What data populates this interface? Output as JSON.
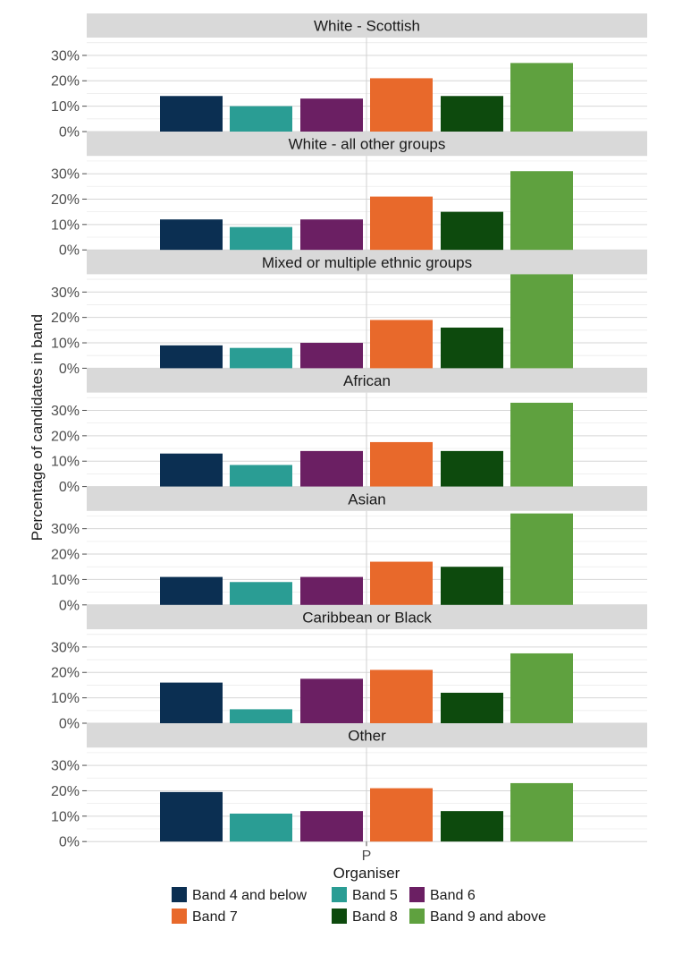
{
  "chart_data": {
    "type": "bar",
    "xlabel": "Organiser",
    "ylabel": "Percentage of candidates in band",
    "x_tick": "P",
    "ylim": [
      0,
      0.37
    ],
    "y_ticks": [
      "0%",
      "10%",
      "20%",
      "30%"
    ],
    "y_tick_values": [
      0,
      0.1,
      0.2,
      0.3
    ],
    "grid": true,
    "legend_position": "bottom",
    "series": [
      {
        "name": "Band 4 and below",
        "color": "#0b2f52"
      },
      {
        "name": "Band 5",
        "color": "#2a9d94"
      },
      {
        "name": "Band 6",
        "color": "#6b1f63"
      },
      {
        "name": "Band 7",
        "color": "#e8692b"
      },
      {
        "name": "Band 8",
        "color": "#0d4a0d"
      },
      {
        "name": "Band 9 and above",
        "color": "#5fa13f"
      }
    ],
    "panels": [
      {
        "title": "White - Scottish",
        "values": [
          0.14,
          0.1,
          0.13,
          0.21,
          0.14,
          0.27
        ]
      },
      {
        "title": "White - all other groups",
        "values": [
          0.12,
          0.09,
          0.12,
          0.21,
          0.15,
          0.31
        ]
      },
      {
        "title": "Mixed or multiple ethnic groups",
        "values": [
          0.09,
          0.08,
          0.1,
          0.19,
          0.16,
          0.37
        ]
      },
      {
        "title": "African",
        "values": [
          0.13,
          0.085,
          0.14,
          0.175,
          0.14,
          0.33
        ]
      },
      {
        "title": "Asian",
        "values": [
          0.11,
          0.09,
          0.11,
          0.17,
          0.15,
          0.36
        ]
      },
      {
        "title": "Caribbean or Black",
        "values": [
          0.16,
          0.055,
          0.175,
          0.21,
          0.12,
          0.275
        ]
      },
      {
        "title": "Other",
        "values": [
          0.195,
          0.11,
          0.12,
          0.21,
          0.12,
          0.23
        ]
      }
    ]
  }
}
